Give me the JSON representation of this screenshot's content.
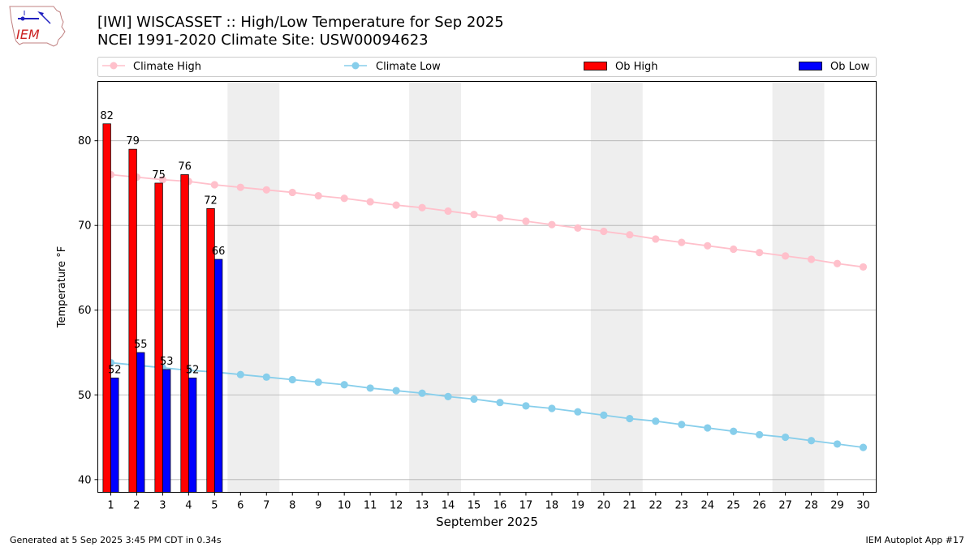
{
  "header": {
    "title_line1": "[IWI] WISCASSET :: High/Low Temperature for Sep 2025",
    "title_line2": "NCEI 1991-2020 Climate Site: USW00094623",
    "logo_text": "IEM"
  },
  "footer": {
    "generated": "Generated at 5 Sep 2025 3:45 PM CDT in 0.34s",
    "app": "IEM Autoplot App #17"
  },
  "colors": {
    "ob_high": "#ff0000",
    "ob_low": "#0000ff",
    "climate_high": "#ffc0cb",
    "climate_low": "#87ceeb",
    "weekend_shade": "#eeeeee",
    "grid": "#b0b0b0"
  },
  "chart_data": {
    "type": "bar",
    "xlabel": "September 2025",
    "ylabel": "Temperature °F",
    "xlim": [
      0.5,
      30.5
    ],
    "ylim": [
      38.5,
      87
    ],
    "yticks": [
      40,
      50,
      60,
      70,
      80
    ],
    "grid": "horizontal",
    "legend_position": "top",
    "weekend_bands": [
      [
        5.5,
        7.5
      ],
      [
        12.5,
        14.5
      ],
      [
        19.5,
        21.5
      ],
      [
        26.5,
        28.5
      ]
    ],
    "days": [
      1,
      2,
      3,
      4,
      5,
      6,
      7,
      8,
      9,
      10,
      11,
      12,
      13,
      14,
      15,
      16,
      17,
      18,
      19,
      20,
      21,
      22,
      23,
      24,
      25,
      26,
      27,
      28,
      29,
      30
    ],
    "ob_high": {
      "name": "Ob High",
      "days": [
        1,
        2,
        3,
        4,
        5
      ],
      "values": [
        82,
        79,
        75,
        76,
        72
      ]
    },
    "ob_low": {
      "name": "Ob Low",
      "days": [
        1,
        2,
        3,
        4,
        5
      ],
      "values": [
        52,
        55,
        53,
        52,
        66
      ]
    },
    "climate_high": {
      "name": "Climate High",
      "values": [
        76.0,
        75.7,
        75.4,
        75.2,
        74.8,
        74.5,
        74.2,
        73.9,
        73.5,
        73.2,
        72.8,
        72.4,
        72.1,
        71.7,
        71.3,
        70.9,
        70.5,
        70.1,
        69.7,
        69.3,
        68.9,
        68.4,
        68.0,
        67.6,
        67.2,
        66.8,
        66.4,
        66.0,
        65.5,
        65.1
      ]
    },
    "climate_low": {
      "name": "Climate Low",
      "values": [
        53.8,
        53.5,
        53.2,
        52.9,
        52.7,
        52.4,
        52.1,
        51.8,
        51.5,
        51.2,
        50.8,
        50.5,
        50.2,
        49.8,
        49.5,
        49.1,
        48.7,
        48.4,
        48.0,
        47.6,
        47.2,
        46.9,
        46.5,
        46.1,
        45.7,
        45.3,
        45.0,
        44.6,
        44.2,
        43.8
      ]
    }
  }
}
